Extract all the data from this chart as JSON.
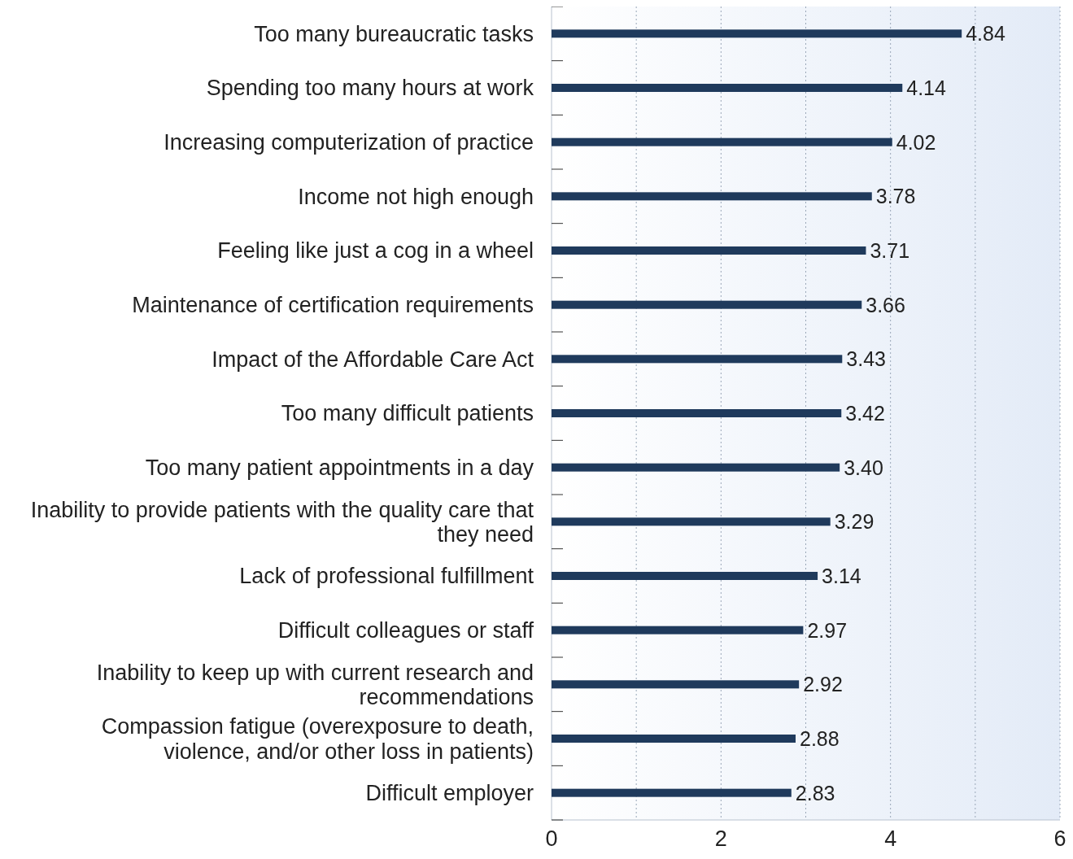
{
  "chart_data": {
    "type": "bar",
    "orientation": "horizontal",
    "categories": [
      "Too many bureaucratic tasks",
      "Spending too many hours at work",
      "Increasing computerization of practice",
      "Income not high enough",
      "Feeling like just a cog in a wheel",
      "Maintenance of certification requirements",
      "Impact of the Affordable Care Act",
      "Too many difficult patients",
      "Too many patient appointments in a day",
      "Inability to provide patients with the quality care that they need",
      "Lack of professional fulfillment",
      "Difficult colleagues or staff",
      "Inability to keep up with current research and recommendations",
      "Compassion fatigue (overexposure to death, violence, and/or other loss in patients)",
      "Difficult employer"
    ],
    "values": [
      4.84,
      4.14,
      4.02,
      3.78,
      3.71,
      3.66,
      3.43,
      3.42,
      3.4,
      3.29,
      3.14,
      2.97,
      2.92,
      2.88,
      2.83
    ],
    "value_labels": [
      "4.84",
      "4.14",
      "4.02",
      "3.78",
      "3.71",
      "3.66",
      "3.43",
      "3.42",
      "3.40",
      "3.29",
      "3.14",
      "2.97",
      "2.92",
      "2.88",
      "2.83"
    ],
    "color": "#1f3a5c",
    "xlim": [
      0,
      6
    ],
    "xticks": [
      0,
      {
        "value": 1,
        "label": null
      },
      2,
      {
        "value": 3,
        "label": null
      },
      4,
      {
        "value": 5,
        "label": null
      },
      6
    ],
    "grid": "x"
  }
}
